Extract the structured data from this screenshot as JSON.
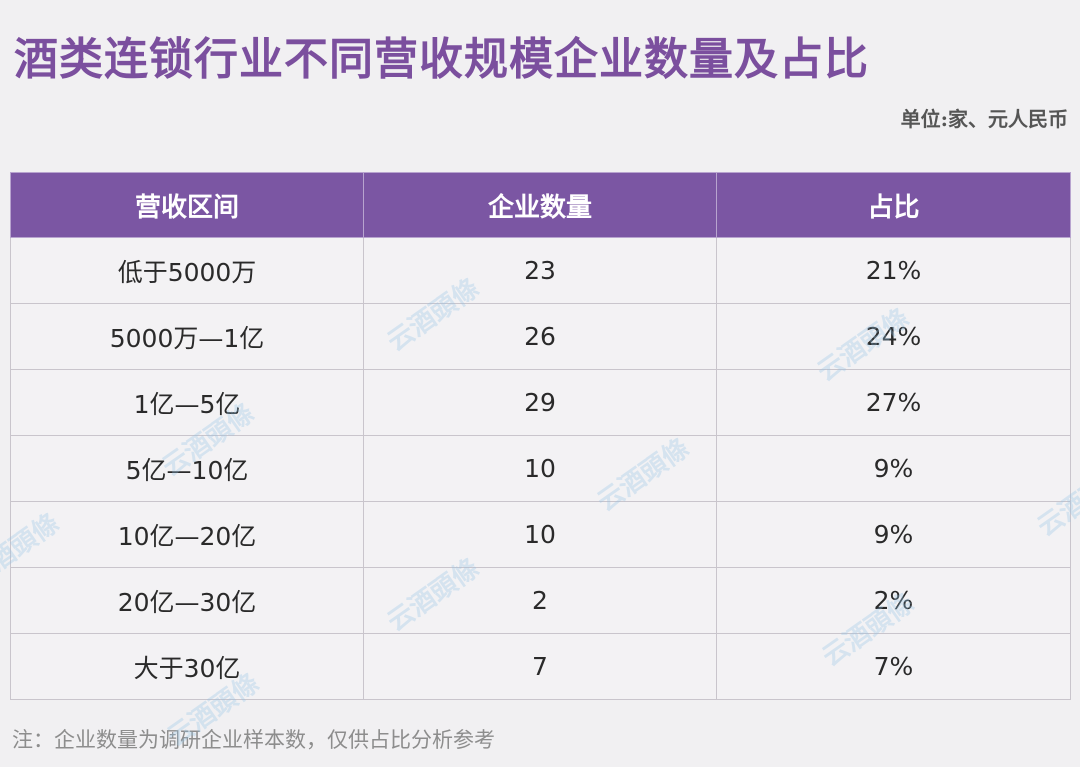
{
  "title": "酒类连锁行业不同营收规模企业数量及占比",
  "unit": "单位:家、元人民币",
  "table": {
    "headers": [
      "营收区间",
      "企业数量",
      "占比"
    ],
    "rows": [
      [
        "低于5000万",
        "23",
        "21%"
      ],
      [
        "5000万—1亿",
        "26",
        "24%"
      ],
      [
        "1亿—5亿",
        "29",
        "27%"
      ],
      [
        "5亿—10亿",
        "10",
        "9%"
      ],
      [
        "10亿—20亿",
        "10",
        "9%"
      ],
      [
        "20亿—30亿",
        "2",
        "2%"
      ],
      [
        "大于30亿",
        "7",
        "7%"
      ]
    ]
  },
  "note": "注：企业数量为调研企业样本数，仅供占比分析参考",
  "watermark": "云酒頭條",
  "colors": {
    "title": "#7b4f9e",
    "header_bg": "#7b56a3",
    "header_text": "#ffffff",
    "background": "#f1f0f2",
    "watermark": "#96c3e6"
  }
}
